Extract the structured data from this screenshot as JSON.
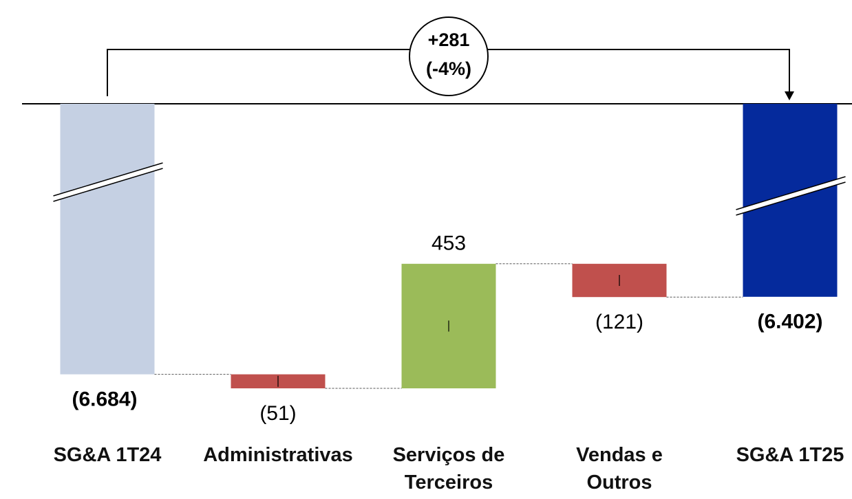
{
  "chart_data": {
    "type": "waterfall",
    "categories": [
      "SG&A 1T24",
      "Administrativas",
      "Serviços de Terceiros",
      "Vendas e Outros",
      "SG&A 1T25"
    ],
    "values": [
      -6684,
      -51,
      453,
      -121,
      -6402
    ],
    "value_labels": [
      "(6.684)",
      "(51)",
      "453",
      "(121)",
      "(6.402)"
    ],
    "measure": [
      "total",
      "delta",
      "delta",
      "delta",
      "total"
    ],
    "colors": [
      "#c5d0e3",
      "#c0504d",
      "#9bbb59",
      "#c0504d",
      "#052a9c"
    ],
    "ylim": [
      -6950,
      -5700
    ],
    "annotation": {
      "lines": [
        "+281",
        "(-4%)"
      ]
    }
  }
}
